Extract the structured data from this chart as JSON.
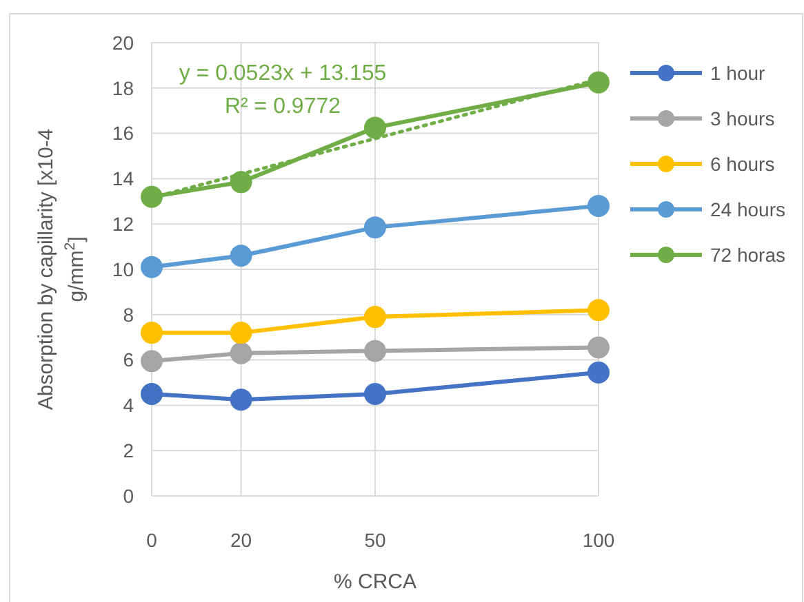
{
  "chart_data": {
    "type": "line",
    "xlabel": "% CRCA",
    "ylabel": "Absorption by capillarity [x10-4 g/mm$^{2}$]",
    "x": [
      0,
      20,
      50,
      100
    ],
    "xlim": [
      0,
      100
    ],
    "xticks": [
      0,
      20,
      50,
      100
    ],
    "ylim": [
      0,
      20
    ],
    "yticks": [
      0,
      2,
      4,
      6,
      8,
      10,
      12,
      14,
      16,
      18,
      20
    ],
    "grid": true,
    "legend": "right",
    "marker": "circle",
    "line_style": "solid",
    "series": [
      {
        "name": "1 hour",
        "color": "#4472c4",
        "values": [
          4.5,
          4.25,
          4.5,
          5.45
        ]
      },
      {
        "name": "3 hours",
        "color": "#a5a5a5",
        "values": [
          5.95,
          6.3,
          6.4,
          6.55
        ]
      },
      {
        "name": "6 hours",
        "color": "#ffc000",
        "values": [
          7.2,
          7.2,
          7.9,
          8.2
        ]
      },
      {
        "name": "24 hours",
        "color": "#5b9bd5",
        "values": [
          10.1,
          10.6,
          11.85,
          12.8
        ]
      },
      {
        "name": "72 horas",
        "color": "#70ad47",
        "values": [
          13.2,
          13.85,
          16.25,
          18.25
        ]
      },
      {
        "type": "line",
        "color": "#70ad47",
        "x": [
          0,
          100
        ],
        "values": [
          13.155,
          18.385
        ],
        "marker": "none",
        "line_style": "dotted"
      }
    ],
    "annotations": [
      "y = 0.0523x + 13.155",
      "R² = 0.9772"
    ]
  }
}
